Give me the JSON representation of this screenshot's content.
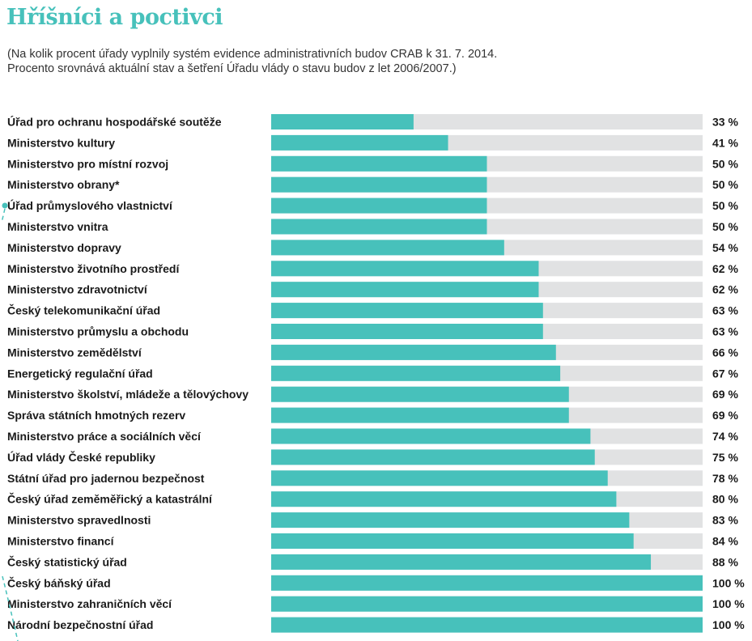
{
  "header": {
    "title": "Hříšníci a poctivci",
    "subtitle_lines": [
      "(Na kolik procent úřady vyplnily systém evidence administrativních budov CRAB k 31. 7. 2014.",
      "Procento srovnává aktuální stav a šetření Úřadu vlády o stavu budov z let 2006/2007.)"
    ]
  },
  "colors": {
    "title": "#47c1bb",
    "bar_fill": "#47c1bb",
    "bar_track": "#e1e2e3",
    "text": "#1a1a1a"
  },
  "chart_data": {
    "type": "bar",
    "orientation": "horizontal",
    "title": "Hříšníci a poctivci",
    "xlabel": "",
    "ylabel": "",
    "xlim": [
      0,
      100
    ],
    "value_suffix": " %",
    "grid": false,
    "legend": "none",
    "categories": [
      "Úřad pro ochranu hospodářské soutěže",
      "Ministerstvo kultury",
      "Ministerstvo pro místní rozvoj",
      "Ministerstvo obrany*",
      "Úřad průmyslového vlastnictví",
      "Ministerstvo vnitra",
      "Ministerstvo dopravy",
      "Ministerstvo životního prostředí",
      "Ministerstvo zdravotnictví",
      "Český telekomunikační úřad",
      "Ministerstvo průmyslu a obchodu",
      "Ministerstvo zemědělství",
      "Energetický regulační úřad",
      "Ministerstvo školství, mládeže a tělovýchovy",
      "Správa státních hmotných rezerv",
      "Ministerstvo práce a sociálních věcí",
      "Úřad vlády České republiky",
      "Státní úřad pro jadernou bezpečnost",
      "Český úřad zeměměřický a katastrální",
      "Ministerstvo spravedlnosti",
      "Ministerstvo financí",
      "Český statistický úřad",
      "Český báňský úřad",
      "Ministerstvo zahraničních věcí",
      "Národní bezpečnostní úřad"
    ],
    "values": [
      33,
      41,
      50,
      50,
      50,
      50,
      54,
      62,
      62,
      63,
      63,
      66,
      67,
      69,
      69,
      74,
      75,
      78,
      80,
      83,
      84,
      88,
      100,
      100,
      100
    ]
  }
}
